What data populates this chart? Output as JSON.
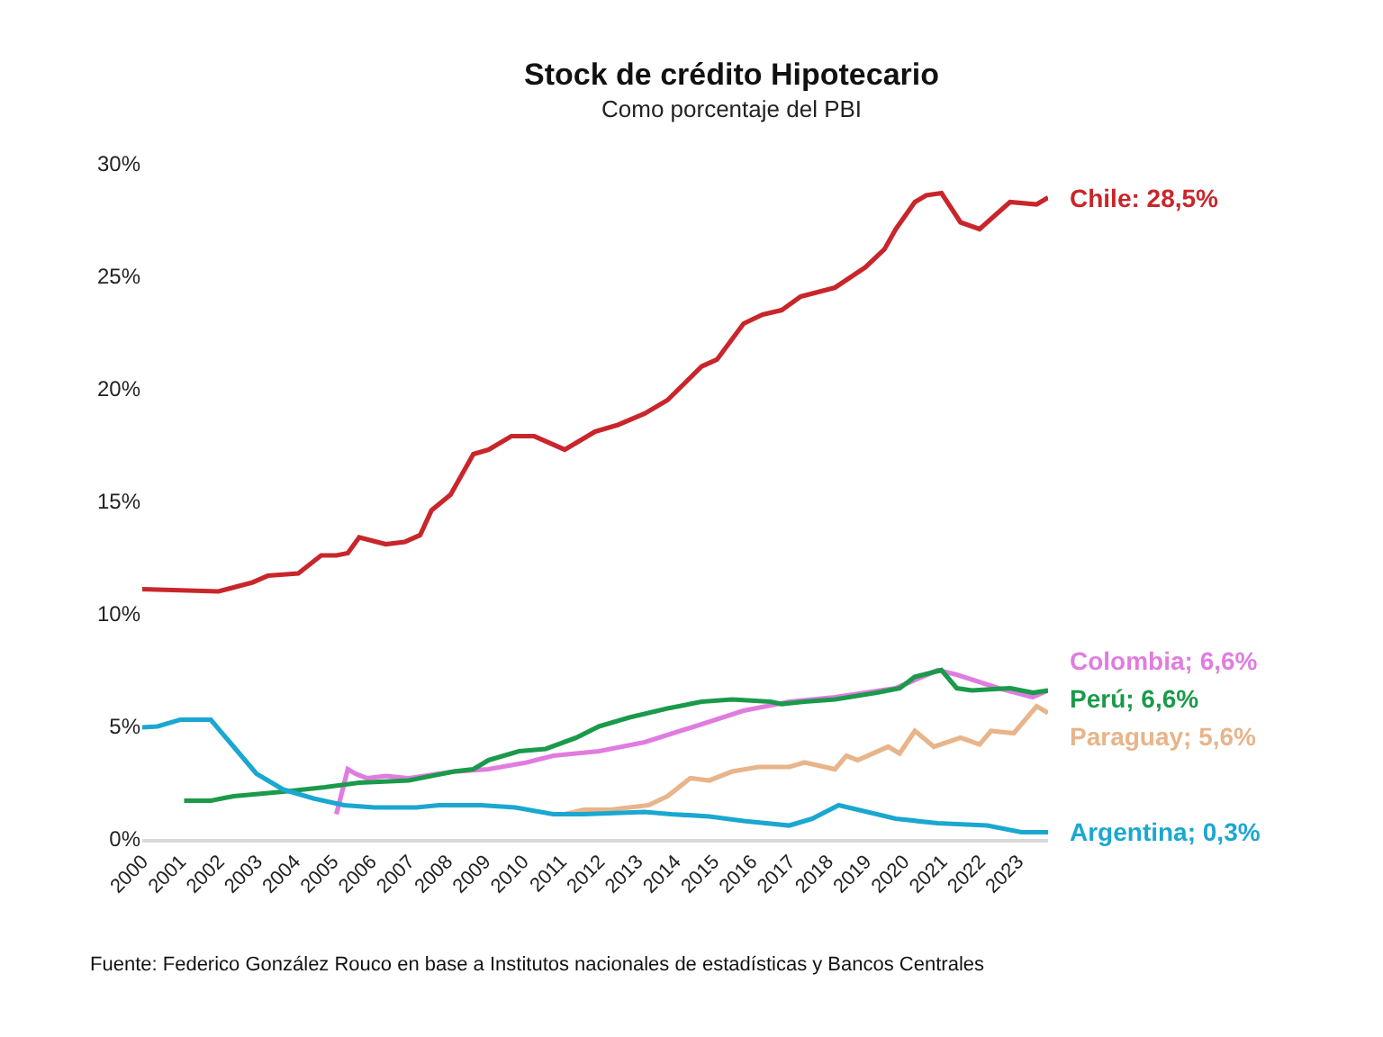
{
  "chart_data": {
    "type": "line",
    "title": "Stock de crédito Hipotecario",
    "subtitle": "Como porcentaje del PBI",
    "xlim": [
      2000,
      2023.8
    ],
    "xticks": [
      2000,
      2001,
      2002,
      2003,
      2004,
      2005,
      2006,
      2007,
      2008,
      2009,
      2010,
      2011,
      2012,
      2013,
      2014,
      2015,
      2016,
      2017,
      2018,
      2019,
      2020,
      2021,
      2022,
      2023
    ],
    "ylim": [
      0,
      30
    ],
    "yticks": [
      {
        "value": 0,
        "label": "0%"
      },
      {
        "value": 5,
        "label": "5%"
      },
      {
        "value": 10,
        "label": "10%"
      },
      {
        "value": 15,
        "label": "15%"
      },
      {
        "value": 20,
        "label": "20%"
      },
      {
        "value": 25,
        "label": "25%"
      },
      {
        "value": 30,
        "label": "30%"
      }
    ],
    "legend": false,
    "marker": "none",
    "line_style": "solid",
    "series": [
      {
        "name": "Chile: 28,5%",
        "color": "#c8262b",
        "x": [
          2000.0,
          2002.0,
          2002.9,
          2003.3,
          2004.1,
          2004.7,
          2005.1,
          2005.4,
          2005.7,
          2006.4,
          2006.9,
          2007.3,
          2007.6,
          2008.1,
          2008.7,
          2009.1,
          2009.7,
          2010.3,
          2011.1,
          2011.9,
          2012.5,
          2013.2,
          2013.8,
          2014.7,
          2015.1,
          2015.8,
          2016.3,
          2016.8,
          2017.3,
          2018.2,
          2019.0,
          2019.5,
          2019.8,
          2020.3,
          2020.6,
          2021.0,
          2021.5,
          2022.0,
          2022.8,
          2023.5,
          2023.8
        ],
        "values": [
          11.1,
          11.0,
          11.4,
          11.7,
          11.8,
          12.6,
          12.6,
          12.7,
          13.4,
          13.1,
          13.2,
          13.5,
          14.6,
          15.3,
          17.1,
          17.3,
          17.9,
          17.9,
          17.3,
          18.1,
          18.4,
          18.9,
          19.5,
          21.0,
          21.3,
          22.9,
          23.3,
          23.5,
          24.1,
          24.5,
          25.4,
          26.2,
          27.1,
          28.3,
          28.6,
          28.7,
          27.4,
          27.1,
          28.3,
          28.2,
          28.5
        ]
      },
      {
        "name": "Colombia; 6,6%",
        "color": "#e07ce0",
        "x": [
          2005.1,
          2005.4,
          2005.6,
          2005.9,
          2006.4,
          2007.0,
          2008.2,
          2009.1,
          2010.1,
          2010.8,
          2012.0,
          2013.2,
          2014.7,
          2015.8,
          2017.0,
          2018.2,
          2019.8,
          2020.9,
          2021.4,
          2022.5,
          2023.4,
          2023.8
        ],
        "values": [
          1.1,
          3.1,
          2.9,
          2.7,
          2.8,
          2.7,
          3.0,
          3.1,
          3.4,
          3.7,
          3.9,
          4.3,
          5.1,
          5.7,
          6.1,
          6.3,
          6.7,
          7.5,
          7.3,
          6.7,
          6.3,
          6.6
        ]
      },
      {
        "name": "Perú; 6,6%",
        "color": "#1a9a4a",
        "x": [
          2001.1,
          2001.8,
          2002.4,
          2003.7,
          2004.8,
          2005.7,
          2007.0,
          2008.2,
          2008.7,
          2009.1,
          2009.9,
          2010.6,
          2011.4,
          2012.0,
          2012.8,
          2013.8,
          2014.7,
          2015.5,
          2016.5,
          2016.8,
          2017.4,
          2018.2,
          2019.3,
          2019.9,
          2020.3,
          2021.0,
          2021.4,
          2021.8,
          2022.8,
          2023.4,
          2023.8
        ],
        "values": [
          1.7,
          1.7,
          1.9,
          2.1,
          2.3,
          2.5,
          2.6,
          3.0,
          3.1,
          3.5,
          3.9,
          4.0,
          4.5,
          5.0,
          5.4,
          5.8,
          6.1,
          6.2,
          6.1,
          6.0,
          6.1,
          6.2,
          6.5,
          6.7,
          7.2,
          7.5,
          6.7,
          6.6,
          6.7,
          6.5,
          6.6
        ]
      },
      {
        "name": "Paraguay; 5,6%",
        "color": "#e8b48a",
        "x": [
          2011.1,
          2011.6,
          2012.3,
          2013.3,
          2013.8,
          2014.4,
          2014.9,
          2015.5,
          2016.2,
          2017.0,
          2017.4,
          2018.2,
          2018.5,
          2018.8,
          2019.6,
          2019.9,
          2020.3,
          2020.8,
          2021.5,
          2022.0,
          2022.3,
          2022.9,
          2023.5,
          2023.8
        ],
        "values": [
          1.1,
          1.3,
          1.3,
          1.5,
          1.9,
          2.7,
          2.6,
          3.0,
          3.2,
          3.2,
          3.4,
          3.1,
          3.7,
          3.5,
          4.1,
          3.8,
          4.8,
          4.1,
          4.5,
          4.2,
          4.8,
          4.7,
          5.9,
          5.6
        ]
      },
      {
        "name": "Argentina; 0,3%",
        "color": "#1aa7d0",
        "x": [
          2000.0,
          2000.4,
          2001.0,
          2001.8,
          2002.4,
          2003.0,
          2003.7,
          2004.5,
          2005.3,
          2006.1,
          2007.2,
          2007.8,
          2008.6,
          2008.9,
          2009.8,
          2010.8,
          2011.6,
          2013.2,
          2013.9,
          2014.9,
          2015.8,
          2017.0,
          2017.6,
          2018.3,
          2019.8,
          2020.9,
          2022.2,
          2023.1,
          2023.8
        ],
        "values": [
          4.96,
          5.0,
          5.3,
          5.3,
          4.1,
          2.9,
          2.2,
          1.8,
          1.5,
          1.4,
          1.4,
          1.5,
          1.5,
          1.5,
          1.4,
          1.1,
          1.1,
          1.2,
          1.1,
          1.0,
          0.8,
          0.6,
          0.9,
          1.5,
          0.9,
          0.7,
          0.6,
          0.3,
          0.3
        ]
      }
    ],
    "annotations": [
      "Fuente: Federico González Rouco en base a Institutos nacionales de estadísticas y Bancos Centrales"
    ]
  }
}
